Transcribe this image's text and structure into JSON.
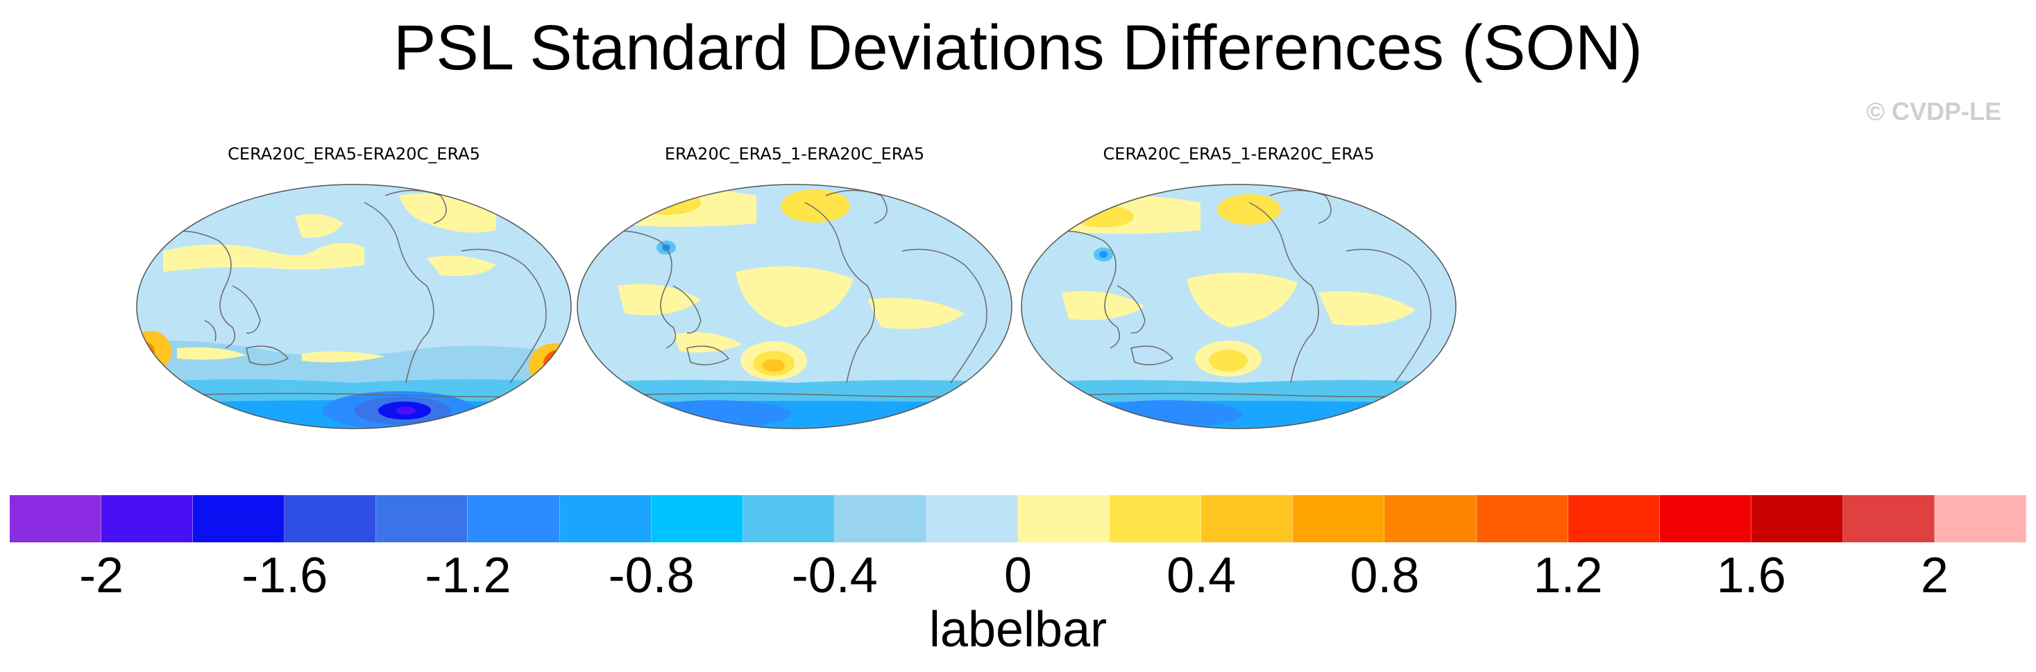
{
  "figure": {
    "title": "PSL Standard Deviations Differences (SON)",
    "watermark": "© CVDP-LE"
  },
  "panels": [
    {
      "title": "CERA20C_ERA5-ERA20C_ERA5",
      "variant": "a"
    },
    {
      "title": "ERA20C_ERA5_1-ERA20C_ERA5",
      "variant": "b"
    },
    {
      "title": "CERA20C_ERA5_1-ERA20C_ERA5",
      "variant": "c"
    }
  ],
  "colorbar": {
    "label": "labelbar",
    "colors": [
      "#8b2be2",
      "#4a10f5",
      "#0b10f2",
      "#2e4ee6",
      "#3b73e8",
      "#2a8cff",
      "#1aa6ff",
      "#00c3ff",
      "#55c6f2",
      "#98d3f0",
      "#bde3f6",
      "#fff7a0",
      "#ffe44a",
      "#ffc41f",
      "#ffa300",
      "#ff8500",
      "#ff5e00",
      "#ff2a00",
      "#f00000",
      "#c80000",
      "#e04040",
      "#ffb0b0"
    ],
    "ticks": [
      "-2",
      "-1.6",
      "-1.2",
      "-0.8",
      "-0.4",
      "0",
      "0.4",
      "0.8",
      "1.2",
      "1.6",
      "2"
    ]
  }
}
